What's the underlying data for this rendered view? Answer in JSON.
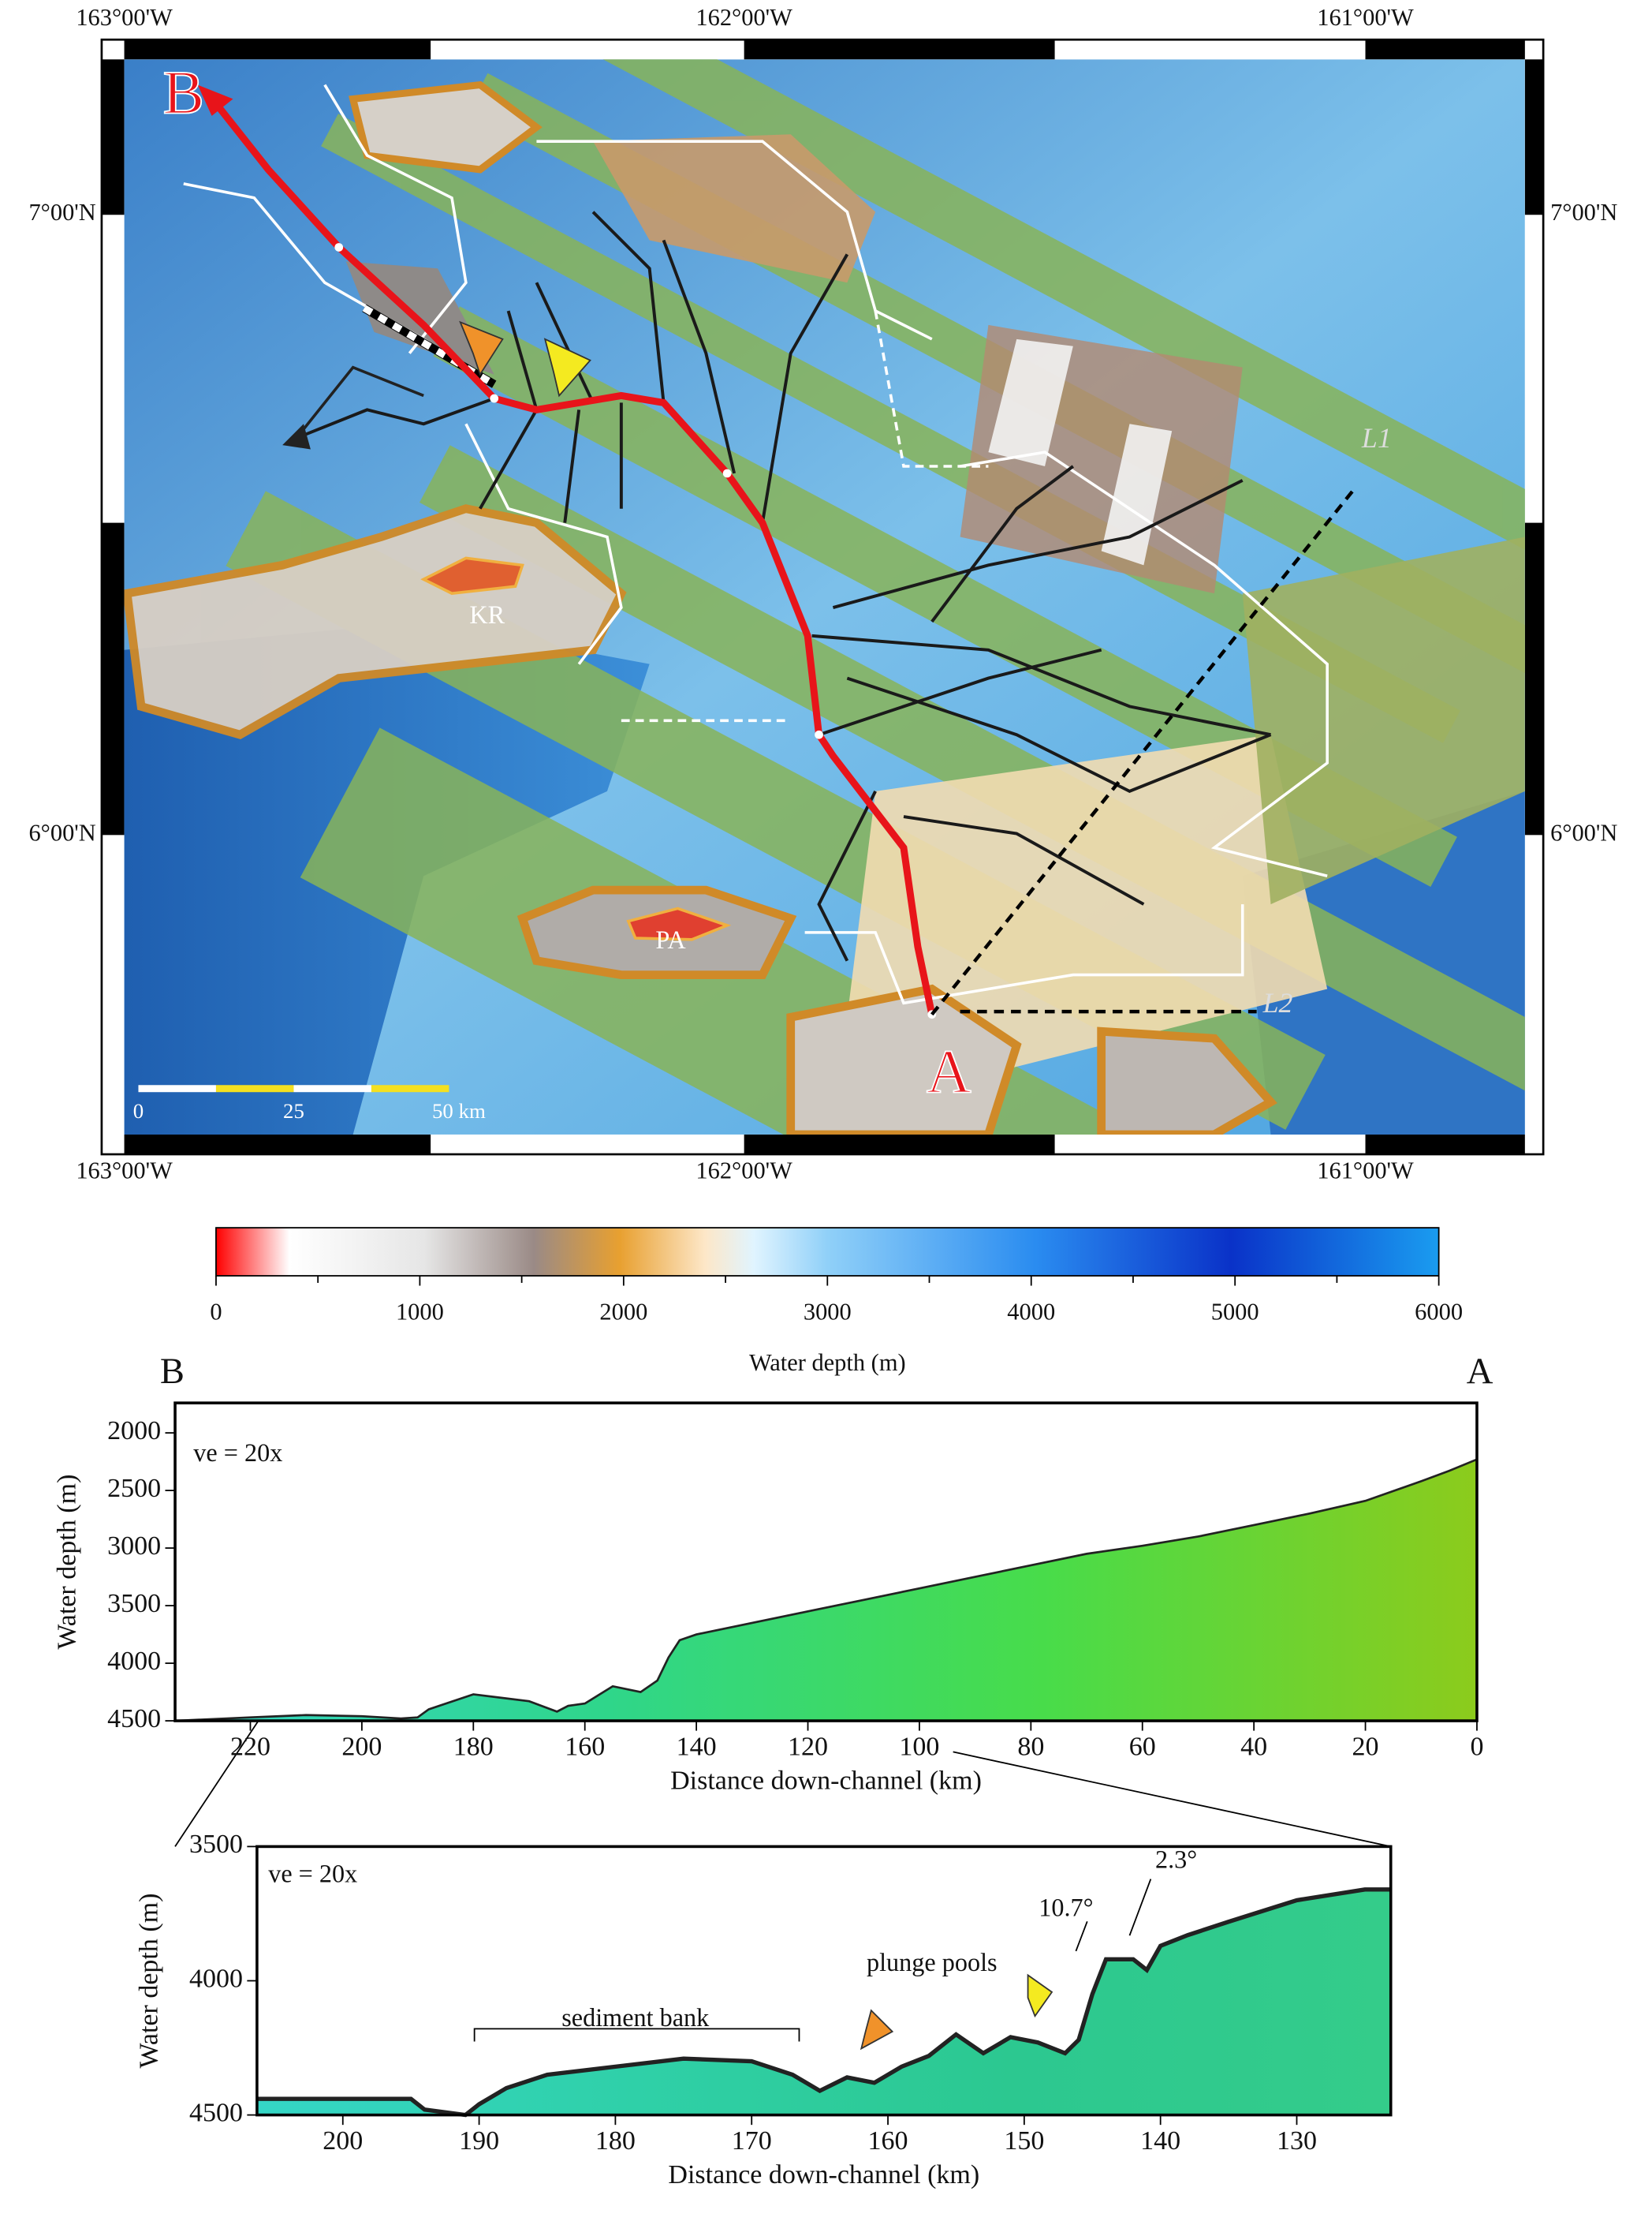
{
  "map": {
    "lon_labels": [
      "163°00'W",
      "162°00'W",
      "161°00'W"
    ],
    "lat_labels": [
      "7°00'N",
      "6°00'N"
    ],
    "point_labels": {
      "b": "B",
      "a": "A",
      "kr": "KR",
      "pa": "PA",
      "l1": "L1",
      "l2": "L2"
    },
    "scale_bar": [
      "0",
      "25",
      "50 km"
    ]
  },
  "chart_data": [
    {
      "type": "colorbar",
      "xlabel": "Water depth (m)",
      "xlim": [
        0,
        6000
      ],
      "xticks": [
        0,
        1000,
        2000,
        3000,
        4000,
        5000,
        6000
      ]
    },
    {
      "type": "area",
      "left_label": "B",
      "right_label": "A",
      "annotations": [
        "ve = 20x"
      ],
      "xlabel": "Distance down-channel (km)",
      "ylabel": "Water depth (m)",
      "x": [
        0,
        5,
        10,
        20,
        30,
        40,
        50,
        60,
        70,
        80,
        90,
        100,
        110,
        120,
        130,
        140,
        143,
        145,
        147,
        150,
        155,
        160,
        163,
        165,
        170,
        180,
        188,
        190,
        193,
        200,
        210,
        220,
        233.5
      ],
      "values": [
        2230,
        2330,
        2420,
        2590,
        2700,
        2800,
        2900,
        2980,
        3050,
        3150,
        3250,
        3350,
        3450,
        3550,
        3650,
        3750,
        3800,
        3950,
        4150,
        4250,
        4200,
        4350,
        4370,
        4420,
        4330,
        4270,
        4400,
        4470,
        4480,
        4460,
        4450,
        4470,
        4500
      ],
      "colors": [
        "#35d6c6",
        "#2fd68a",
        "#48dc4a",
        "#8ccb1c"
      ],
      "xlim": [
        233.5,
        0
      ],
      "xticks": [
        220,
        200,
        180,
        160,
        140,
        120,
        100,
        80,
        60,
        40,
        20,
        0
      ],
      "ylim": [
        4500,
        1740
      ],
      "yticks": [
        2000,
        2500,
        3000,
        3500,
        4000,
        4500
      ]
    },
    {
      "type": "area",
      "annotations": [
        "ve = 20x",
        "sediment bank",
        "plunge pools",
        "10.7°",
        "2.3°"
      ],
      "xlabel": "Distance down-channel (km)",
      "ylabel": "Water depth (m)",
      "x": [
        206.3,
        195,
        194,
        191,
        190,
        188,
        185,
        180,
        175,
        170,
        167,
        165,
        163,
        161,
        159,
        157,
        155,
        153,
        151,
        149,
        147,
        146,
        145,
        144,
        142,
        141,
        140,
        138,
        135,
        130,
        125,
        123.1
      ],
      "values": [
        4440,
        4440,
        4480,
        4500,
        4460,
        4400,
        4350,
        4320,
        4290,
        4300,
        4350,
        4410,
        4360,
        4380,
        4320,
        4280,
        4200,
        4270,
        4210,
        4230,
        4270,
        4220,
        4050,
        3920,
        3920,
        3960,
        3870,
        3830,
        3780,
        3700,
        3660,
        3660
      ],
      "colors": [
        "#35d6c6",
        "#2fd0a8",
        "#2cc890",
        "#34cc8a"
      ],
      "xlim": [
        206.3,
        123.1
      ],
      "xticks": [
        200,
        190,
        180,
        170,
        160,
        150,
        140,
        130
      ],
      "ylim": [
        4500,
        3500
      ],
      "yticks": [
        3500,
        4000,
        4500
      ]
    }
  ]
}
